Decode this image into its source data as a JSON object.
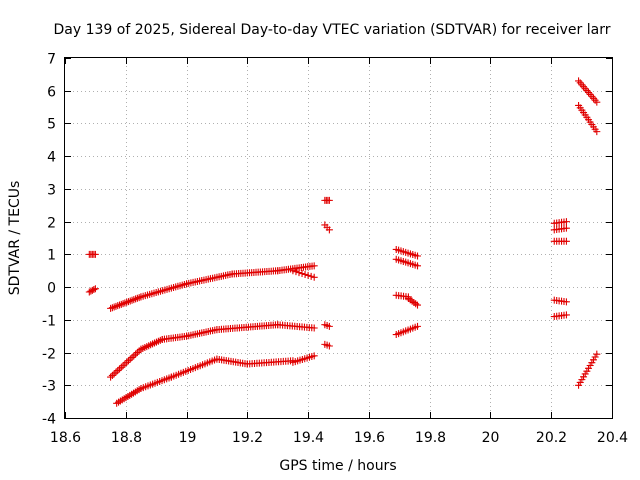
{
  "chart_data": {
    "type": "scatter",
    "title": "Day 139 of 2025, Sidereal Day-to-day VTEC variation (SDTVAR) for receiver larr",
    "xlabel": "GPS time / hours",
    "ylabel": "SDTVAR / TECUs",
    "xlim": [
      18.6,
      20.4
    ],
    "ylim": [
      -4,
      7
    ],
    "xticks": [
      18.6,
      18.8,
      19,
      19.2,
      19.4,
      19.6,
      19.8,
      20,
      20.2,
      20.4
    ],
    "xtick_labels": [
      "18.6",
      "18.8",
      "19",
      "19.2",
      "19.4",
      "19.6",
      "19.8",
      "20",
      "20.2",
      "20.4"
    ],
    "yticks": [
      -4,
      -3,
      -2,
      -1,
      0,
      1,
      2,
      3,
      4,
      5,
      6,
      7
    ],
    "ytick_labels": [
      "-4",
      "-3",
      "-2",
      "-1",
      "0",
      "1",
      "2",
      "3",
      "4",
      "5",
      "6",
      "7"
    ],
    "grid": true,
    "marker": "plus",
    "color": "#e00000",
    "segments": [
      {
        "x0": 18.68,
        "x1": 18.7,
        "y0": 1.0,
        "y1": 1.0,
        "n": 5
      },
      {
        "x0": 18.68,
        "x1": 18.7,
        "y0": -0.15,
        "y1": -0.05,
        "n": 5
      },
      {
        "x0": 18.75,
        "x1": 18.85,
        "y0": -0.65,
        "y1": -0.3,
        "n": 18
      },
      {
        "x0": 18.85,
        "x1": 19.0,
        "y0": -0.3,
        "y1": 0.1,
        "n": 22
      },
      {
        "x0": 19.0,
        "x1": 19.15,
        "y0": 0.1,
        "y1": 0.4,
        "n": 22
      },
      {
        "x0": 19.15,
        "x1": 19.3,
        "y0": 0.4,
        "y1": 0.5,
        "n": 22
      },
      {
        "x0": 19.3,
        "x1": 19.42,
        "y0": 0.5,
        "y1": 0.65,
        "n": 18
      },
      {
        "x0": 19.35,
        "x1": 19.42,
        "y0": 0.5,
        "y1": 0.3,
        "n": 8
      },
      {
        "x0": 18.75,
        "x1": 18.85,
        "y0": -2.75,
        "y1": -1.9,
        "n": 18
      },
      {
        "x0": 18.85,
        "x1": 18.92,
        "y0": -1.9,
        "y1": -1.6,
        "n": 12
      },
      {
        "x0": 18.92,
        "x1": 19.0,
        "y0": -1.6,
        "y1": -1.5,
        "n": 12
      },
      {
        "x0": 19.0,
        "x1": 19.1,
        "y0": -1.5,
        "y1": -1.3,
        "n": 15
      },
      {
        "x0": 19.1,
        "x1": 19.3,
        "y0": -1.3,
        "y1": -1.15,
        "n": 28
      },
      {
        "x0": 19.3,
        "x1": 19.42,
        "y0": -1.15,
        "y1": -1.25,
        "n": 16
      },
      {
        "x0": 18.77,
        "x1": 18.85,
        "y0": -3.55,
        "y1": -3.1,
        "n": 14
      },
      {
        "x0": 18.85,
        "x1": 18.95,
        "y0": -3.1,
        "y1": -2.75,
        "n": 14
      },
      {
        "x0": 18.95,
        "x1": 19.1,
        "y0": -2.75,
        "y1": -2.2,
        "n": 20
      },
      {
        "x0": 19.1,
        "x1": 19.2,
        "y0": -2.2,
        "y1": -2.35,
        "n": 14
      },
      {
        "x0": 19.2,
        "x1": 19.35,
        "y0": -2.35,
        "y1": -2.25,
        "n": 20
      },
      {
        "x0": 19.35,
        "x1": 19.42,
        "y0": -2.3,
        "y1": -2.1,
        "n": 10
      },
      {
        "x0": 19.455,
        "x1": 19.47,
        "y0": 2.65,
        "y1": 2.65,
        "n": 4
      },
      {
        "x0": 19.455,
        "x1": 19.47,
        "y0": 1.9,
        "y1": 1.75,
        "n": 3
      },
      {
        "x0": 19.455,
        "x1": 19.47,
        "y0": -1.15,
        "y1": -1.2,
        "n": 3
      },
      {
        "x0": 19.455,
        "x1": 19.47,
        "y0": -1.75,
        "y1": -1.8,
        "n": 3
      },
      {
        "x0": 19.69,
        "x1": 19.76,
        "y0": 1.15,
        "y1": 0.95,
        "n": 10
      },
      {
        "x0": 19.69,
        "x1": 19.76,
        "y0": 0.85,
        "y1": 0.65,
        "n": 10
      },
      {
        "x0": 19.69,
        "x1": 19.73,
        "y0": -0.25,
        "y1": -0.3,
        "n": 6
      },
      {
        "x0": 19.73,
        "x1": 19.76,
        "y0": -0.35,
        "y1": -0.55,
        "n": 6
      },
      {
        "x0": 19.69,
        "x1": 19.76,
        "y0": -1.45,
        "y1": -1.2,
        "n": 10
      },
      {
        "x0": 20.21,
        "x1": 20.25,
        "y0": 1.95,
        "y1": 2.0,
        "n": 6
      },
      {
        "x0": 20.21,
        "x1": 20.25,
        "y0": 1.75,
        "y1": 1.8,
        "n": 6
      },
      {
        "x0": 20.21,
        "x1": 20.25,
        "y0": 1.4,
        "y1": 1.4,
        "n": 6
      },
      {
        "x0": 20.21,
        "x1": 20.25,
        "y0": -0.4,
        "y1": -0.45,
        "n": 6
      },
      {
        "x0": 20.21,
        "x1": 20.25,
        "y0": -0.9,
        "y1": -0.85,
        "n": 6
      },
      {
        "x0": 20.29,
        "x1": 20.35,
        "y0": 6.3,
        "y1": 5.65,
        "n": 12
      },
      {
        "x0": 20.29,
        "x1": 20.35,
        "y0": 5.55,
        "y1": 4.75,
        "n": 12
      },
      {
        "x0": 20.29,
        "x1": 20.35,
        "y0": -3.0,
        "y1": -2.05,
        "n": 12
      }
    ]
  }
}
